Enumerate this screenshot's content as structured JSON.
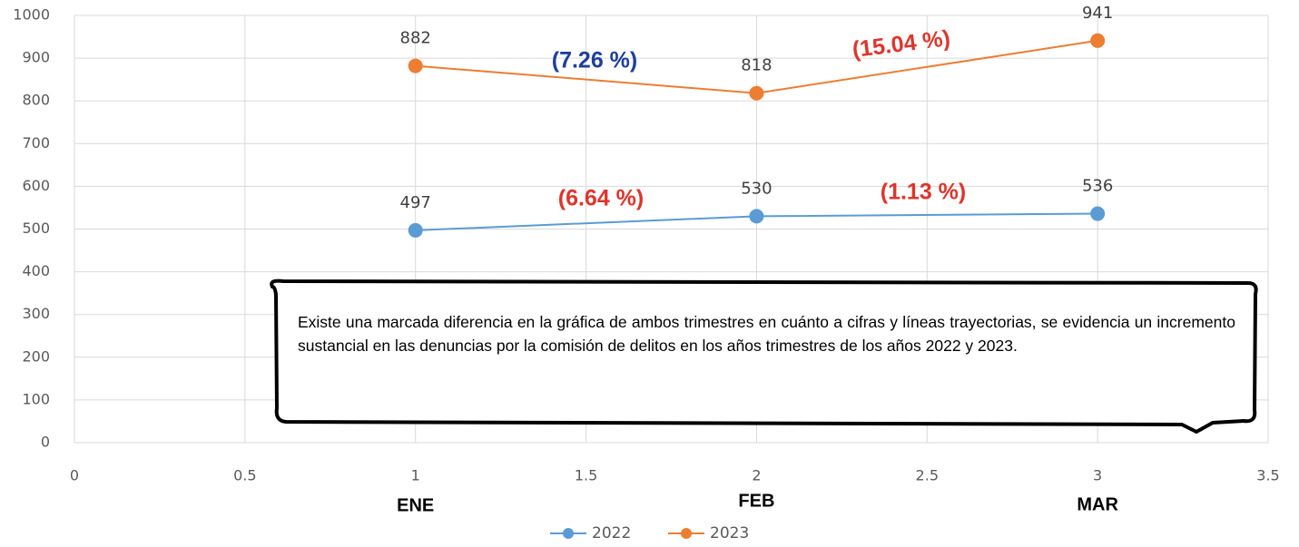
{
  "chart_data": {
    "type": "line",
    "x": [
      1,
      2,
      3
    ],
    "xlim": [
      0,
      3.5
    ],
    "xticks": [
      0,
      0.5,
      1,
      1.5,
      2,
      2.5,
      3,
      3.5
    ],
    "ylim": [
      0,
      1000
    ],
    "yticks": [
      0,
      100,
      200,
      300,
      400,
      500,
      600,
      700,
      800,
      900,
      1000
    ],
    "grid": true,
    "category_labels": [
      "ENE",
      "FEB",
      "MAR"
    ],
    "series": [
      {
        "name": "2022",
        "color": "#5b9bd5",
        "values": [
          497,
          530,
          536
        ]
      },
      {
        "name": "2023",
        "color": "#ed7d31",
        "values": [
          882,
          818,
          941
        ]
      }
    ],
    "annotations": [
      {
        "text": "(7.26 %)",
        "color": "#1f3f9a"
      },
      {
        "text": "(15.04 %)",
        "color": "#e0342a"
      },
      {
        "text": "(6.64 %)",
        "color": "#e0342a"
      },
      {
        "text": "(1.13 %)",
        "color": "#e0342a"
      }
    ],
    "legend": "bottom",
    "callout": "Existe una marcada diferencia en la gráfica de ambos trimestres en cuánto a cifras y líneas trayectorias, se evidencia un incremento sustancial en las denuncias por la comisión de delitos en los años trimestres de los años 2022 y 2023."
  }
}
